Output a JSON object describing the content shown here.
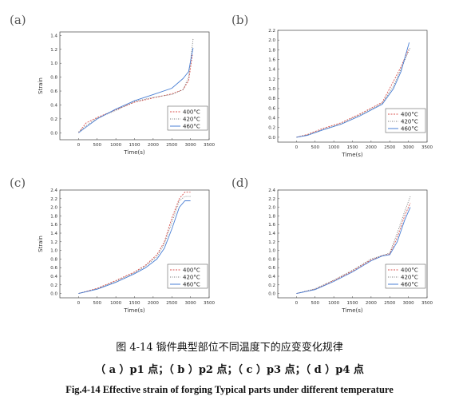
{
  "caption_cn": "图 4-14  锻件典型部位不同温度下的应变变化规律",
  "caption_sub": "（ a ）p1 点；（ b ）p2 点；（ c ）p3 点；（ d ）p4 点",
  "caption_en": "Fig.4-14 Effective strain of forging Typical parts under different temperature",
  "series_colors": [
    "#d9534f",
    "#777777",
    "#4a7fd4"
  ],
  "chart_data": [
    {
      "type": "line",
      "panel": "(a)",
      "xlabel": "Time(s)",
      "ylabel": "Strain",
      "xlim": [
        -500,
        3500
      ],
      "ylim": [
        -0.1,
        1.45
      ],
      "xticks": [
        0,
        500,
        1000,
        1500,
        2000,
        2500,
        3000,
        3500
      ],
      "yticks": [
        0.0,
        0.2,
        0.4,
        0.6,
        0.8,
        1.0,
        1.2,
        1.4
      ],
      "legend_position": "bottom-right",
      "series": [
        {
          "name": "400°C",
          "x": [
            0,
            200,
            500,
            1000,
            1500,
            2000,
            2500,
            2800,
            2950,
            3050
          ],
          "y": [
            0.0,
            0.14,
            0.22,
            0.33,
            0.44,
            0.5,
            0.56,
            0.62,
            0.75,
            1.12
          ]
        },
        {
          "name": "420°C",
          "x": [
            0,
            200,
            500,
            1000,
            1500,
            2000,
            2500,
            2800,
            2950,
            3070
          ],
          "y": [
            0.01,
            0.1,
            0.21,
            0.32,
            0.45,
            0.51,
            0.55,
            0.62,
            0.8,
            1.35
          ]
        },
        {
          "name": "460°C",
          "x": [
            0,
            200,
            500,
            1000,
            1500,
            2000,
            2500,
            2800,
            2950,
            3070
          ],
          "y": [
            0.0,
            0.08,
            0.2,
            0.34,
            0.46,
            0.55,
            0.64,
            0.78,
            0.88,
            1.22
          ]
        }
      ]
    },
    {
      "type": "line",
      "panel": "(b)",
      "xlabel": "Time(s)",
      "ylabel": "",
      "xlim": [
        -500,
        3500
      ],
      "ylim": [
        -0.1,
        2.2
      ],
      "xticks": [
        0,
        500,
        1000,
        1500,
        2000,
        2500,
        3000,
        3500
      ],
      "yticks": [
        0.0,
        0.2,
        0.4,
        0.6,
        0.8,
        1.0,
        1.2,
        1.4,
        1.6,
        1.8,
        2.0,
        2.2
      ],
      "legend_position": "bottom-right",
      "series": [
        {
          "name": "400°C",
          "x": [
            0,
            300,
            700,
            1200,
            1700,
            2100,
            2300,
            2600,
            2800,
            3000
          ],
          "y": [
            0.0,
            0.06,
            0.18,
            0.3,
            0.48,
            0.64,
            0.72,
            1.15,
            1.45,
            1.8
          ]
        },
        {
          "name": "420°C",
          "x": [
            0,
            300,
            700,
            1200,
            1700,
            2100,
            2300,
            2600,
            2800,
            3050
          ],
          "y": [
            0.0,
            0.05,
            0.16,
            0.28,
            0.46,
            0.62,
            0.7,
            1.05,
            1.4,
            1.85
          ]
        },
        {
          "name": "460°C",
          "x": [
            0,
            300,
            700,
            1200,
            1700,
            2100,
            2300,
            2600,
            2800,
            3020
          ],
          "y": [
            0.0,
            0.04,
            0.15,
            0.27,
            0.44,
            0.6,
            0.68,
            1.0,
            1.35,
            1.95
          ]
        }
      ]
    },
    {
      "type": "line",
      "panel": "(c)",
      "xlabel": "Time(s)",
      "ylabel": "Strain",
      "xlim": [
        -500,
        3500
      ],
      "ylim": [
        -0.1,
        2.4
      ],
      "xticks": [
        0,
        500,
        1000,
        1500,
        2000,
        2500,
        3000,
        3500
      ],
      "yticks": [
        0.0,
        0.2,
        0.4,
        0.6,
        0.8,
        1.0,
        1.2,
        1.4,
        1.6,
        1.8,
        2.0,
        2.2,
        2.4
      ],
      "legend_position": "bottom-right",
      "series": [
        {
          "name": "400°C",
          "x": [
            0,
            500,
            1000,
            1500,
            1800,
            2100,
            2300,
            2500,
            2700,
            2850,
            3000
          ],
          "y": [
            0.0,
            0.12,
            0.3,
            0.5,
            0.66,
            0.9,
            1.2,
            1.75,
            2.2,
            2.35,
            2.35
          ]
        },
        {
          "name": "420°C",
          "x": [
            0,
            500,
            1000,
            1500,
            1800,
            2100,
            2300,
            2500,
            2700,
            2850,
            3000
          ],
          "y": [
            0.0,
            0.11,
            0.28,
            0.48,
            0.64,
            0.86,
            1.15,
            1.65,
            2.15,
            2.25,
            2.25
          ]
        },
        {
          "name": "460°C",
          "x": [
            0,
            500,
            1000,
            1500,
            1800,
            2100,
            2300,
            2500,
            2700,
            2850,
            3000
          ],
          "y": [
            0.0,
            0.1,
            0.26,
            0.46,
            0.6,
            0.8,
            1.05,
            1.5,
            2.0,
            2.15,
            2.15
          ]
        }
      ]
    },
    {
      "type": "line",
      "panel": "(d)",
      "xlabel": "Time(s)",
      "ylabel": "",
      "xlim": [
        -500,
        3500
      ],
      "ylim": [
        -0.1,
        2.4
      ],
      "xticks": [
        0,
        500,
        1000,
        1500,
        2000,
        2500,
        3000,
        3500
      ],
      "yticks": [
        0.0,
        0.2,
        0.4,
        0.6,
        0.8,
        1.0,
        1.2,
        1.4,
        1.6,
        1.8,
        2.0,
        2.2,
        2.4
      ],
      "legend_position": "bottom-right",
      "series": [
        {
          "name": "400°C",
          "x": [
            0,
            500,
            1000,
            1500,
            2000,
            2300,
            2500,
            2700,
            2900,
            3050
          ],
          "y": [
            0.0,
            0.1,
            0.3,
            0.52,
            0.78,
            0.88,
            0.92,
            1.3,
            1.8,
            2.1
          ]
        },
        {
          "name": "420°C",
          "x": [
            0,
            500,
            1000,
            1500,
            2000,
            2300,
            2500,
            2700,
            2900,
            3050
          ],
          "y": [
            0.0,
            0.11,
            0.31,
            0.54,
            0.8,
            0.88,
            0.94,
            1.4,
            1.9,
            2.25
          ]
        },
        {
          "name": "460°C",
          "x": [
            0,
            500,
            1000,
            1500,
            2000,
            2300,
            2500,
            2700,
            2900,
            3050
          ],
          "y": [
            0.0,
            0.09,
            0.28,
            0.5,
            0.76,
            0.87,
            0.9,
            1.2,
            1.7,
            2.0
          ]
        }
      ]
    }
  ]
}
